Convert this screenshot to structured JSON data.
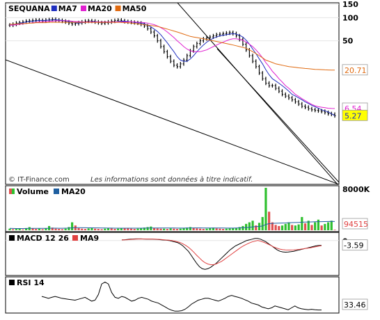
{
  "chart_data": [
    {
      "type": "line",
      "panel": "price",
      "legend": [
        {
          "label": "SEQUANA",
          "color": "#000000"
        },
        {
          "label": "MA7",
          "color": "#1f2fbf"
        },
        {
          "label": "MA20",
          "color": "#e020d0"
        },
        {
          "label": "MA50",
          "color": "#e06a10"
        }
      ],
      "yticks": [
        "150",
        "100",
        "50"
      ],
      "ytick_values": [
        150,
        100,
        50
      ],
      "ylim": [
        0.7,
        150
      ],
      "yscale": "log",
      "value_labels": [
        {
          "text": "20.71",
          "value": 20.71,
          "color": "#e06a10"
        },
        {
          "text": "6.54",
          "value": 6.54,
          "color": "#e020d0"
        },
        {
          "text": "5.27",
          "value": 5.27,
          "color": "#1f2fbf",
          "fill": "#ffff00"
        }
      ],
      "footer_source": "© IT-Finance.com",
      "footer_disclaimer": "Les informations sont données à titre indicatif.",
      "price": [
        80,
        82,
        85,
        86,
        88,
        90,
        91,
        92,
        93,
        92,
        91,
        93,
        94,
        95,
        93,
        92,
        90,
        88,
        85,
        83,
        84,
        86,
        88,
        90,
        91,
        90,
        88,
        86,
        85,
        86,
        88,
        90,
        92,
        93,
        91,
        89,
        88,
        87,
        86,
        85,
        82,
        78,
        72,
        65,
        58,
        50,
        42,
        36,
        31,
        27,
        24,
        23,
        25,
        28,
        32,
        37,
        42,
        46,
        50,
        53,
        55,
        56,
        58,
        60,
        61,
        62,
        63,
        64,
        62,
        58,
        52,
        45,
        38,
        32,
        27,
        23,
        19,
        16,
        14,
        13,
        13,
        12,
        11,
        10,
        9.5,
        9,
        8.5,
        8,
        7.5,
        7,
        6.8,
        6.5,
        6.3,
        6.2,
        6.1,
        6.0,
        5.8,
        5.6,
        5.5,
        5.27
      ],
      "series": [
        {
          "name": "MA7",
          "values": [
            80,
            81,
            83,
            85,
            86,
            88,
            89,
            90,
            91,
            92,
            92,
            92,
            93,
            93,
            94,
            93,
            92,
            91,
            89,
            87,
            86,
            85,
            86,
            87,
            88,
            89,
            89,
            88,
            87,
            87,
            87,
            87,
            88,
            89,
            90,
            90,
            89,
            88,
            87,
            86,
            85,
            83,
            80,
            76,
            71,
            66,
            60,
            53,
            47,
            41,
            36,
            31,
            28,
            27,
            27,
            29,
            32,
            36,
            40,
            44,
            48,
            51,
            54,
            56,
            58,
            59,
            60,
            61,
            62,
            61,
            59,
            56,
            51,
            45,
            39,
            34,
            29,
            25,
            21,
            18,
            16,
            15,
            14,
            13,
            12,
            11,
            10,
            9.5,
            9,
            8.5,
            8,
            7.6,
            7.2,
            6.9,
            6.6,
            6.3,
            6.1,
            5.9,
            5.6,
            5.27
          ]
        },
        {
          "name": "MA20",
          "values": [
            80,
            80,
            81,
            82,
            83,
            84,
            85,
            86,
            87,
            88,
            89,
            89,
            90,
            90,
            91,
            91,
            91,
            91,
            91,
            90,
            89,
            89,
            88,
            88,
            88,
            88,
            88,
            88,
            88,
            88,
            88,
            88,
            88,
            88,
            88,
            88,
            88,
            88,
            88,
            87,
            87,
            86,
            85,
            83,
            81,
            78,
            74,
            70,
            65,
            60,
            55,
            50,
            46,
            42,
            39,
            37,
            36,
            36,
            36,
            37,
            38,
            40,
            42,
            44,
            46,
            48,
            50,
            52,
            53,
            53,
            52,
            51,
            48,
            45,
            42,
            38,
            34,
            30,
            26,
            23,
            20,
            18,
            16,
            14.5,
            13,
            12,
            11,
            10,
            9.4,
            8.8,
            8.3,
            7.8,
            7.4,
            7.1,
            6.9,
            6.8,
            6.7,
            6.6,
            6.55,
            6.54
          ]
        },
        {
          "name": "MA50",
          "values": [
            82,
            82,
            83,
            83,
            84,
            84,
            85,
            85,
            86,
            86,
            86,
            86,
            87,
            87,
            87,
            87,
            87,
            87,
            87,
            87,
            87,
            87,
            87,
            87,
            87,
            87,
            87,
            87,
            87,
            87,
            87,
            87,
            87,
            87,
            87,
            86,
            86,
            85,
            84,
            83,
            82,
            81,
            80,
            79,
            78,
            77,
            75,
            73,
            71,
            69,
            67,
            65,
            63,
            61,
            59,
            57,
            56,
            55,
            54,
            53,
            52,
            51,
            50,
            49,
            48,
            47,
            46,
            45,
            44,
            43,
            42,
            41,
            40,
            38,
            36,
            34,
            32,
            30,
            28,
            27,
            26,
            25,
            24.5,
            24,
            23.5,
            23,
            22.8,
            22.5,
            22.2,
            22,
            21.8,
            21.6,
            21.4,
            21.2,
            21.1,
            21,
            20.9,
            20.8,
            20.75,
            20.71
          ]
        }
      ],
      "trendlines": 3
    },
    {
      "type": "bar",
      "panel": "volume",
      "legend": [
        {
          "label": "Volume",
          "color": "#2fc02f"
        },
        {
          "label": "MA20",
          "color": "#1f5fa0"
        }
      ],
      "ytick": "8000K",
      "ymax": 8000,
      "value_label": "94515",
      "values": [
        300,
        200,
        250,
        300,
        150,
        400,
        600,
        350,
        250,
        300,
        200,
        400,
        800,
        500,
        300,
        250,
        200,
        300,
        600,
        1500,
        900,
        400,
        300,
        250,
        350,
        500,
        300,
        250,
        200,
        300,
        400,
        350,
        250,
        300,
        450,
        400,
        350,
        300,
        250,
        300,
        400,
        500,
        600,
        700,
        400,
        350,
        300,
        300,
        250,
        350,
        300,
        250,
        300,
        450,
        500,
        600,
        400,
        350,
        300,
        250,
        300,
        400,
        500,
        350,
        300,
        250,
        300,
        350,
        400,
        450,
        600,
        800,
        1200,
        1500,
        1800,
        900,
        1400,
        2500,
        8000,
        3500,
        1500,
        1000,
        800,
        900,
        1200,
        1500,
        1000,
        900,
        1100,
        2500,
        1300,
        1800,
        1000,
        1500,
        2000,
        900,
        1200,
        1500,
        1800,
        94.5
      ],
      "ma": [
        350,
        340,
        330,
        330,
        330,
        340,
        350,
        360,
        360,
        360,
        360,
        370,
        380,
        390,
        390,
        380,
        380,
        390,
        400,
        450,
        480,
        480,
        470,
        470,
        460,
        460,
        450,
        440,
        430,
        420,
        410,
        400,
        390,
        390,
        390,
        390,
        390,
        390,
        390,
        390,
        390,
        400,
        410,
        420,
        430,
        430,
        430,
        430,
        420,
        420,
        420,
        410,
        410,
        410,
        420,
        430,
        440,
        440,
        440,
        430,
        420,
        420,
        430,
        430,
        430,
        420,
        410,
        410,
        410,
        420,
        440,
        470,
        510,
        570,
        640,
        680,
        720,
        800,
        1100,
        1250,
        1300,
        1320,
        1340,
        1360,
        1380,
        1420,
        1440,
        1460,
        1480,
        1520,
        1540,
        1560,
        1580,
        1600,
        1620,
        1630,
        1640,
        1650,
        1660,
        1650
      ]
    },
    {
      "type": "line",
      "panel": "macd",
      "legend": [
        {
          "label": "MACD 12 26",
          "color": "#000000"
        },
        {
          "label": "MA9",
          "color": "#e04040"
        }
      ],
      "ytick": "0",
      "ylim": [
        -25,
        4
      ],
      "value_label": "-3.59",
      "series": [
        {
          "name": "MACD 12 26",
          "values": [
            0.5,
            0.6,
            0.8,
            1.0,
            1.1,
            1.2,
            1.2,
            1.2,
            1.1,
            1.0,
            1.0,
            1.0,
            0.9,
            0.8,
            0.6,
            0.4,
            0.2,
            0.0,
            -0.5,
            -1.0,
            -1.5,
            -2.5,
            -4,
            -6,
            -8,
            -11,
            -14,
            -17,
            -19.5,
            -21,
            -21.5,
            -21,
            -20,
            -18.5,
            -17,
            -15,
            -13,
            -11,
            -9,
            -7,
            -5.5,
            -4,
            -3,
            -2,
            -1,
            0,
            0.5,
            1,
            1.5,
            1.5,
            1,
            0,
            -1,
            -2.5,
            -4,
            -5.5,
            -7,
            -8,
            -8.5,
            -8.7,
            -8.6,
            -8.3,
            -8,
            -7.5,
            -7,
            -6.5,
            -6,
            -5.5,
            -5,
            -4.5,
            -4,
            -3.7,
            -3.59
          ]
        },
        {
          "name": "MA9",
          "values": [
            0.4,
            0.5,
            0.6,
            0.8,
            0.9,
            1.0,
            1.1,
            1.1,
            1.1,
            1.1,
            1.0,
            1.0,
            1.0,
            0.9,
            0.8,
            0.6,
            0.4,
            0.2,
            0,
            -0.4,
            -0.9,
            -1.5,
            -2.4,
            -3.6,
            -5,
            -6.8,
            -8.8,
            -11,
            -13,
            -15,
            -16.5,
            -17.5,
            -18,
            -18,
            -17.5,
            -16.5,
            -15.5,
            -14,
            -12.5,
            -11,
            -9.5,
            -8,
            -6.5,
            -5,
            -3.8,
            -2.8,
            -1.8,
            -1,
            -0.5,
            0,
            -0.5,
            -1.2,
            -2,
            -3,
            -4,
            -5,
            -5.8,
            -6.4,
            -6.8,
            -7,
            -7.1,
            -7.1,
            -7,
            -6.8,
            -6.6,
            -6.3,
            -6,
            -5.7,
            -5.4,
            -5,
            -4.6,
            -4.2,
            -3.9
          ]
        }
      ]
    },
    {
      "type": "line",
      "panel": "rsi",
      "legend": [
        {
          "label": "RSI 14",
          "color": "#000000"
        }
      ],
      "ylim": [
        30,
        100
      ],
      "value_label": "33.46",
      "values": [
        62,
        60,
        58,
        60,
        62,
        60,
        58,
        57,
        56,
        55,
        54,
        56,
        58,
        60,
        56,
        52,
        54,
        66,
        88,
        92,
        88,
        70,
        60,
        58,
        62,
        60,
        56,
        52,
        54,
        58,
        60,
        58,
        56,
        52,
        50,
        48,
        44,
        40,
        36,
        33,
        31,
        31,
        32,
        35,
        40,
        46,
        50,
        54,
        56,
        58,
        58,
        56,
        54,
        52,
        55,
        58,
        62,
        64,
        62,
        60,
        58,
        55,
        52,
        48,
        46,
        44,
        40,
        38,
        36,
        38,
        42,
        40,
        38,
        36,
        34,
        38,
        42,
        38,
        36,
        35,
        34,
        35,
        34,
        33.5,
        33.46
      ]
    }
  ]
}
